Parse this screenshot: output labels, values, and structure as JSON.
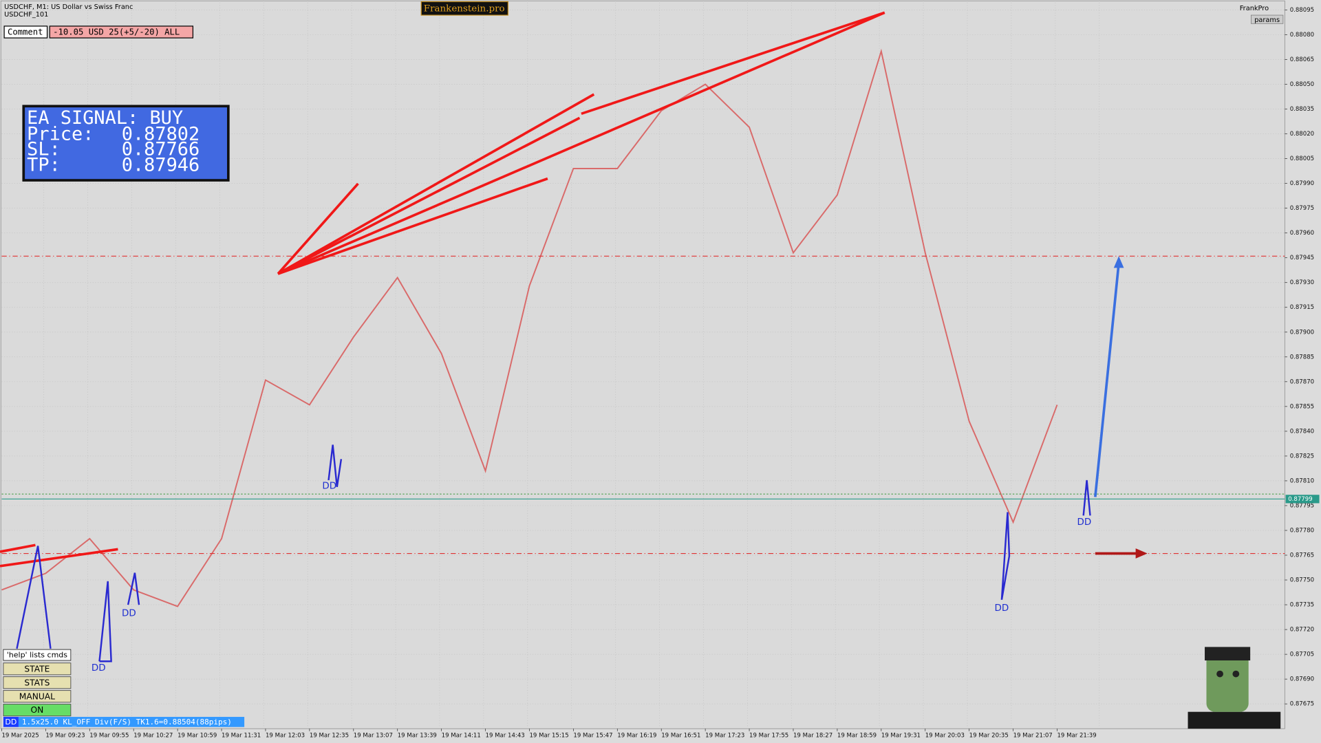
{
  "chart_data": {
    "type": "line",
    "title": "USDCHF, M1:  US Dollar vs Swiss Franc",
    "subtitle": "USDCHF_101",
    "x": [
      "19 Mar 2025",
      "19 Mar 09:23",
      "19 Mar 09:55",
      "19 Mar 10:27",
      "19 Mar 10:59",
      "19 Mar 11:31",
      "19 Mar 12:03",
      "19 Mar 12:35",
      "19 Mar 13:07",
      "19 Mar 13:39",
      "19 Mar 14:11",
      "19 Mar 14:43",
      "19 Mar 15:15",
      "19 Mar 15:47",
      "19 Mar 16:19",
      "19 Mar 16:51",
      "19 Mar 17:23",
      "19 Mar 17:55",
      "19 Mar 18:27",
      "19 Mar 18:59",
      "19 Mar 19:31",
      "19 Mar 20:03",
      "19 Mar 20:35",
      "19 Mar 21:07",
      "19 Mar 21:39"
    ],
    "series": [
      {
        "name": "USDCHF",
        "color": "#d96a6a",
        "values": [
          0.87744,
          0.87754,
          0.87775,
          0.87744,
          0.87734,
          0.87775,
          0.87871,
          0.87856,
          0.87897,
          0.87933,
          0.87887,
          0.87816,
          0.87928,
          0.87999,
          0.87999,
          0.88034,
          0.8805,
          0.88024,
          0.87948,
          0.87983,
          0.8807,
          0.87948,
          0.87846,
          0.87785,
          0.87856
        ]
      }
    ],
    "ylim": [
      0.8766,
      0.88101
    ],
    "yticks": [
      0.88095,
      {
        "value": 0.8808,
        "label": "0.88080"
      },
      0.88065,
      {
        "value": 0.8805,
        "label": "0.88050"
      },
      0.88035,
      {
        "value": 0.8802,
        "label": "0.88020"
      },
      0.88005,
      {
        "value": 0.8799,
        "label": "0.87990"
      },
      0.87975,
      {
        "value": 0.8796,
        "label": "0.87960"
      },
      0.87945,
      {
        "value": 0.8793,
        "label": "0.87930"
      },
      0.87915,
      {
        "value": 0.879,
        "label": "0.87900"
      },
      0.87885,
      {
        "value": 0.8787,
        "label": "0.87870"
      },
      0.87855,
      {
        "value": 0.8784,
        "label": "0.87840"
      },
      0.87825,
      {
        "value": 0.8781,
        "label": "0.87810"
      },
      0.87795,
      {
        "value": 0.8778,
        "label": "0.87780"
      },
      0.87765,
      {
        "value": 0.8775,
        "label": "0.87750"
      },
      0.87735,
      {
        "value": 0.8772,
        "label": "0.87720"
      },
      0.87705,
      {
        "value": 0.8769,
        "label": "0.87690"
      },
      0.87675
    ],
    "grid": true,
    "current_price": 0.87799,
    "annotations": [
      "DD",
      "DD",
      "DD",
      "DD",
      "DD"
    ]
  },
  "header": {
    "brand": "Frankenstein.pro",
    "account": "FrankPro",
    "params_button": "params",
    "comment_label": "Comment",
    "comment_value": "-10.05 USD 25(+5/-20) ALL"
  },
  "signal_panel": {
    "title": "EA SIGNAL: BUY",
    "rows": [
      {
        "label": "Price:",
        "value": 0.87802
      },
      {
        "label": "SL:",
        "value": 0.87766
      },
      {
        "label": "TP:",
        "value": 0.87946
      }
    ]
  },
  "controls": {
    "help": "'help' lists cmds",
    "buttons": [
      "STATE",
      "STATS",
      "MANUAL",
      "ON"
    ]
  },
  "status_bar": {
    "tag": "DD",
    "text": "1.5x25.0 KL_OFF Div(F/S) TK1.6=0.88504(88pips)"
  }
}
